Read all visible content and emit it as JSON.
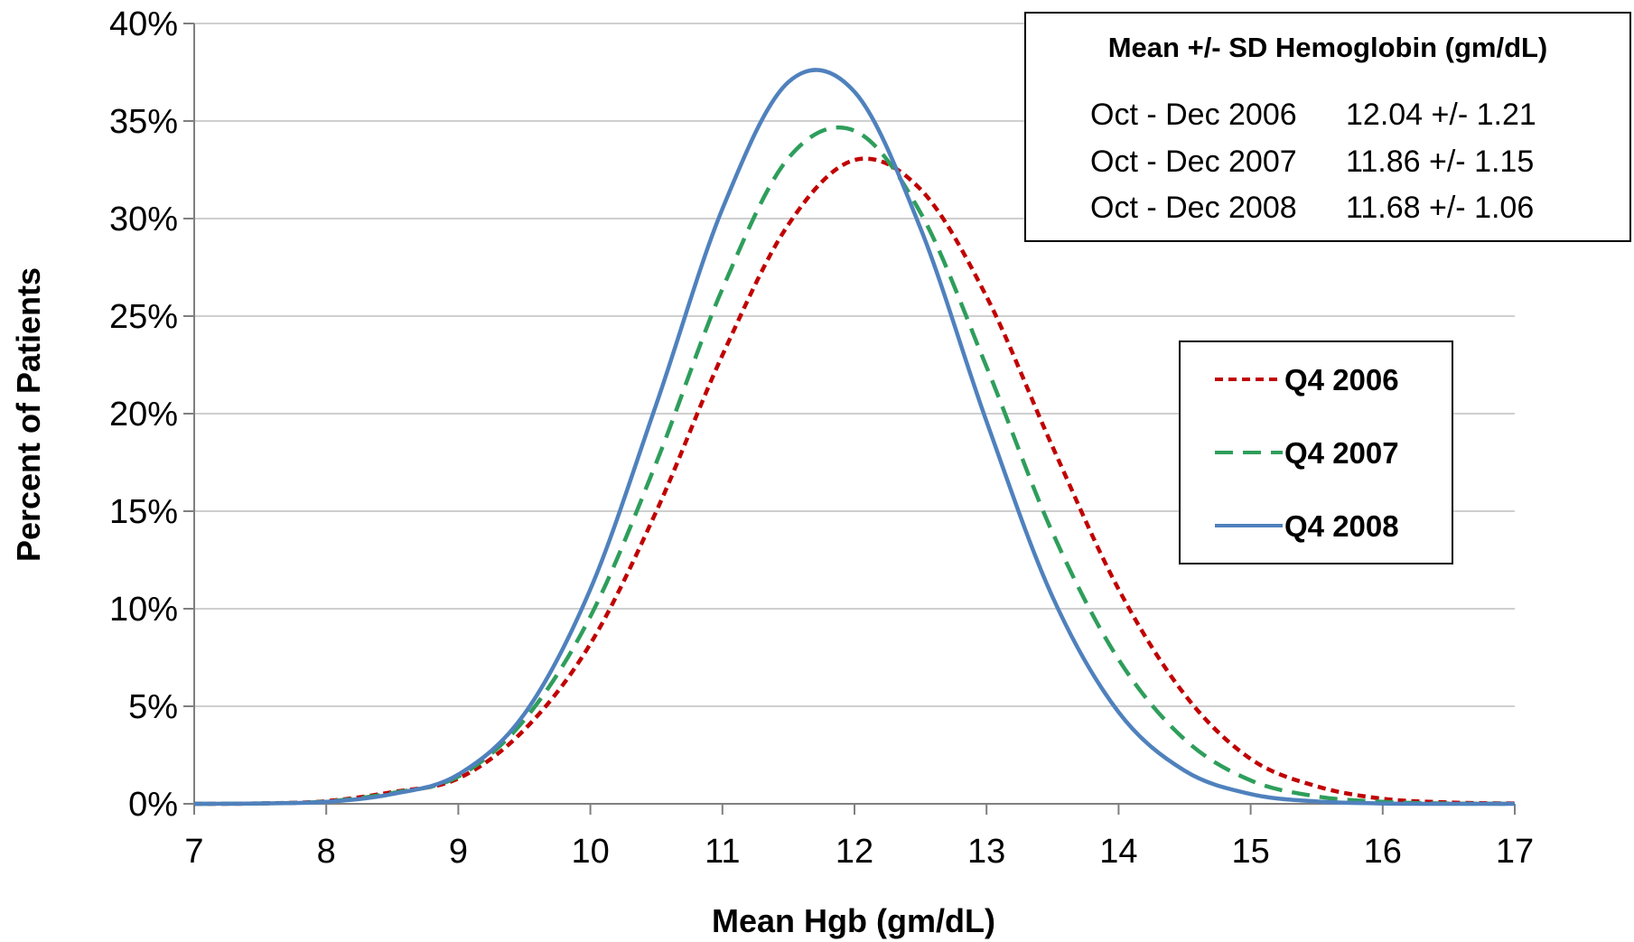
{
  "chart_data": {
    "type": "line",
    "title": "",
    "xlabel": "Mean Hgb (gm/dL)",
    "ylabel": "Percent of Patients",
    "xlim": [
      7,
      17
    ],
    "ylim": [
      0,
      40
    ],
    "x_ticks": [
      7,
      8,
      9,
      10,
      11,
      12,
      13,
      14,
      15,
      16,
      17
    ],
    "y_ticks": [
      0,
      5,
      10,
      15,
      20,
      25,
      30,
      35,
      40
    ],
    "y_tick_labels": [
      "0%",
      "5%",
      "10%",
      "15%",
      "20%",
      "25%",
      "30%",
      "35%",
      "40%"
    ],
    "grid": "horizontal",
    "legend_position": "right",
    "x": [
      7,
      7.5,
      8,
      8.5,
      9,
      9.5,
      10,
      10.5,
      11,
      11.5,
      12,
      12.5,
      13,
      13.5,
      14,
      14.5,
      15,
      15.5,
      16,
      16.5,
      17
    ],
    "series": [
      {
        "name": "Q4 2006",
        "color": "#c00000",
        "style": "dotted",
        "values": [
          0.0,
          0.02,
          0.14,
          0.6,
          1.3,
          3.8,
          8.2,
          15.0,
          23.0,
          29.7,
          33.0,
          31.5,
          26.0,
          18.3,
          11.0,
          5.6,
          2.3,
          0.9,
          0.26,
          0.07,
          0.02
        ]
      },
      {
        "name": "Q4 2007",
        "color": "#2e9e5b",
        "style": "dashed",
        "values": [
          0.0,
          0.02,
          0.12,
          0.55,
          1.4,
          4.3,
          9.6,
          17.5,
          26.4,
          33.1,
          34.5,
          30.3,
          22.4,
          13.9,
          7.4,
          3.3,
          1.2,
          0.38,
          0.1,
          0.02,
          0.0
        ]
      },
      {
        "name": "Q4 2008",
        "color": "#4f81bd",
        "style": "solid",
        "values": [
          0.0,
          0.02,
          0.1,
          0.5,
          1.5,
          4.6,
          11.0,
          20.5,
          30.5,
          37.0,
          36.5,
          29.5,
          19.6,
          10.6,
          4.7,
          1.7,
          0.5,
          0.12,
          0.02,
          0.0,
          0.0
        ]
      }
    ],
    "stats_box": {
      "title": "Mean +/- SD Hemoglobin (gm/dL)",
      "rows": [
        {
          "period": "Oct - Dec 2006",
          "value": "12.04 +/- 1.21"
        },
        {
          "period": "Oct - Dec 2007",
          "value": "11.86 +/- 1.15"
        },
        {
          "period": "Oct - Dec 2008",
          "value": "11.68 +/- 1.06"
        }
      ]
    }
  }
}
